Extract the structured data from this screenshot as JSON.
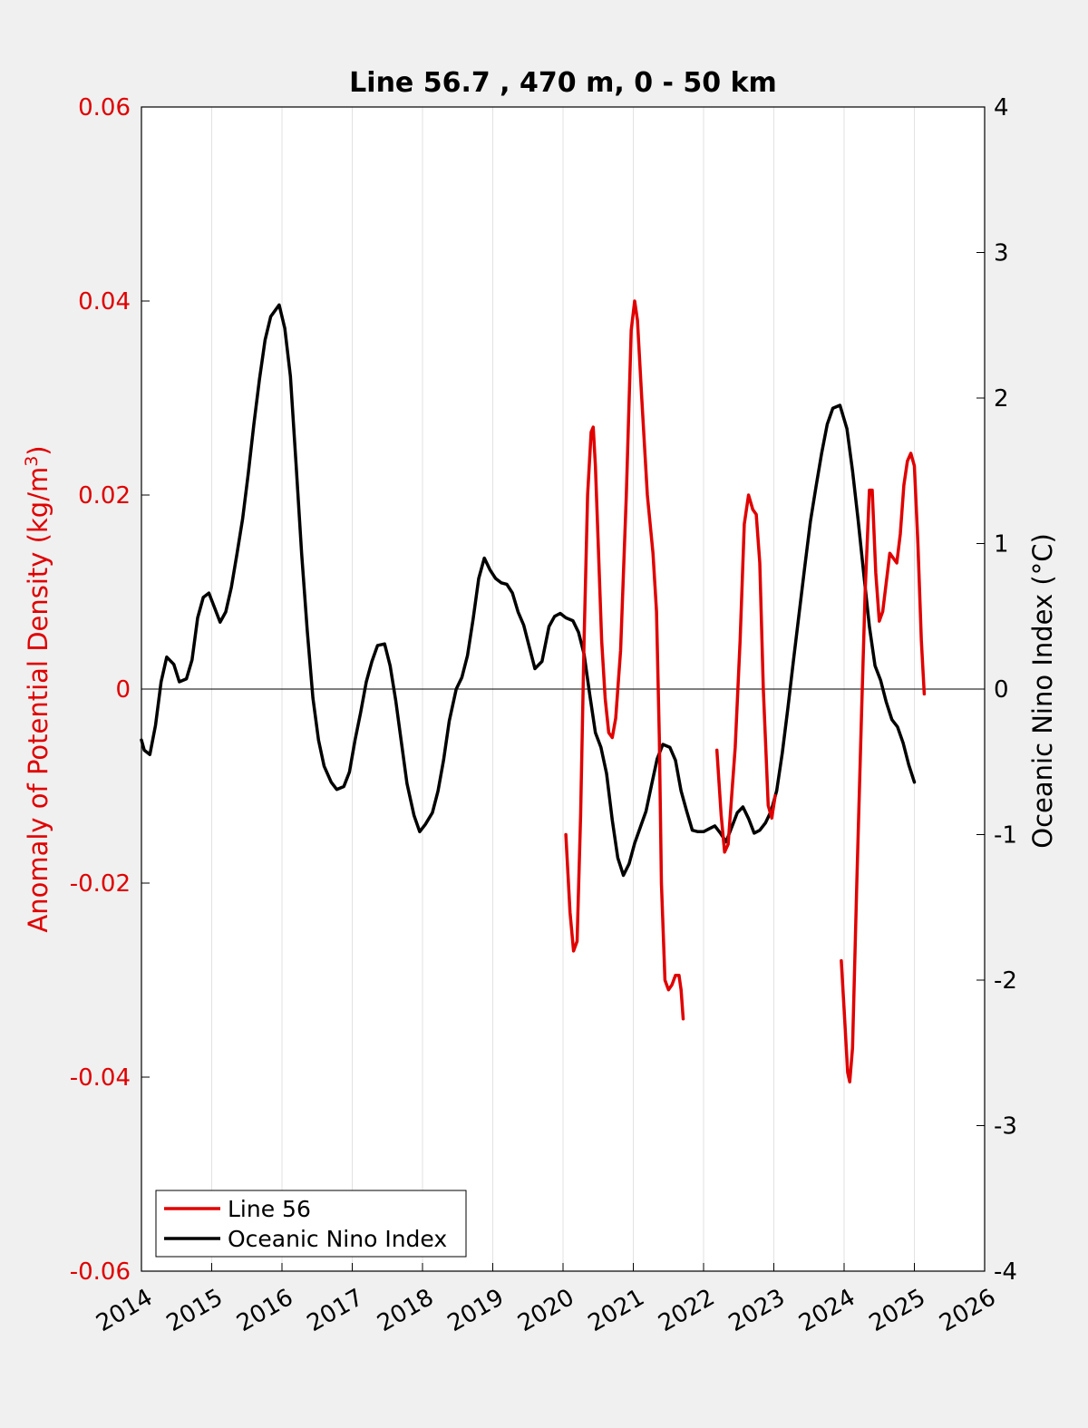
{
  "chart_data": {
    "type": "line",
    "title": "Line 56.7 , 470 m, 0 - 50 km",
    "ylabel_left": "Anomaly of Potential Density (kg/m3)",
    "ylabel_left_main": "Anomaly of Potential Density (kg/m",
    "ylabel_left_sup": "3",
    "ylabel_left_close": ")",
    "ylabel_right": "Oceanic Nino Index (°C)",
    "xlim": [
      2014,
      2026
    ],
    "ylim_left": [
      -0.06,
      0.06
    ],
    "ylim_right": [
      -4,
      4
    ],
    "grid": "vertical",
    "legend_position": "bottom-left",
    "x_ticks": [
      "2014",
      "2015",
      "2016",
      "2017",
      "2018",
      "2019",
      "2020",
      "2021",
      "2022",
      "2023",
      "2024",
      "2025",
      "2026"
    ],
    "y_left_ticks": [
      "0.06",
      "0.04",
      "0.02",
      "0",
      "-0.02",
      "-0.04",
      "-0.06"
    ],
    "y_right_ticks": [
      "4",
      "3",
      "2",
      "1",
      "0",
      "-1",
      "-2",
      "-3",
      "-4"
    ],
    "colors": {
      "line56": "#e00000",
      "oni": "#000000"
    },
    "series": [
      {
        "name": "Line 56",
        "axis": "left",
        "segments": [
          [
            [
              2020.04,
              -0.015
            ],
            [
              2020.1,
              -0.023
            ],
            [
              2020.15,
              -0.027
            ],
            [
              2020.2,
              -0.026
            ],
            [
              2020.25,
              -0.013
            ],
            [
              2020.3,
              0.005
            ],
            [
              2020.35,
              0.02
            ],
            [
              2020.4,
              0.0265
            ],
            [
              2020.43,
              0.027
            ],
            [
              2020.46,
              0.023
            ],
            [
              2020.5,
              0.015
            ],
            [
              2020.55,
              0.005
            ],
            [
              2020.6,
              -0.001
            ],
            [
              2020.65,
              -0.0045
            ],
            [
              2020.7,
              -0.005
            ],
            [
              2020.75,
              -0.003
            ],
            [
              2020.82,
              0.004
            ],
            [
              2020.9,
              0.02
            ],
            [
              2020.97,
              0.037
            ],
            [
              2021.02,
              0.04
            ],
            [
              2021.06,
              0.038
            ],
            [
              2021.12,
              0.03
            ],
            [
              2021.2,
              0.02
            ],
            [
              2021.28,
              0.014
            ],
            [
              2021.33,
              0.008
            ],
            [
              2021.37,
              -0.005
            ],
            [
              2021.4,
              -0.02
            ],
            [
              2021.45,
              -0.03
            ],
            [
              2021.5,
              -0.031
            ],
            [
              2021.55,
              -0.0305
            ],
            [
              2021.6,
              -0.0295
            ],
            [
              2021.65,
              -0.0295
            ],
            [
              2021.68,
              -0.031
            ],
            [
              2021.71,
              -0.034
            ]
          ],
          [
            [
              2022.19,
              -0.0063
            ],
            [
              2022.25,
              -0.013
            ],
            [
              2022.3,
              -0.0168
            ],
            [
              2022.35,
              -0.016
            ],
            [
              2022.45,
              -0.006
            ],
            [
              2022.52,
              0.005
            ],
            [
              2022.58,
              0.017
            ],
            [
              2022.64,
              0.02
            ],
            [
              2022.7,
              0.0185
            ],
            [
              2022.75,
              0.018
            ],
            [
              2022.8,
              0.013
            ],
            [
              2022.85,
              0.0
            ],
            [
              2022.92,
              -0.012
            ],
            [
              2022.97,
              -0.0133
            ],
            [
              2023.02,
              -0.011
            ]
          ],
          [
            [
              2023.96,
              -0.028
            ],
            [
              2024.0,
              -0.033
            ],
            [
              2024.05,
              -0.0395
            ],
            [
              2024.08,
              -0.0405
            ],
            [
              2024.12,
              -0.037
            ],
            [
              2024.18,
              -0.02
            ],
            [
              2024.25,
              -0.002
            ],
            [
              2024.3,
              0.01
            ],
            [
              2024.36,
              0.0205
            ],
            [
              2024.4,
              0.0205
            ],
            [
              2024.45,
              0.012
            ],
            [
              2024.5,
              0.007
            ],
            [
              2024.55,
              0.008
            ],
            [
              2024.6,
              0.011
            ],
            [
              2024.65,
              0.014
            ],
            [
              2024.7,
              0.0135
            ],
            [
              2024.75,
              0.013
            ],
            [
              2024.8,
              0.016
            ],
            [
              2024.85,
              0.021
            ],
            [
              2024.9,
              0.0235
            ],
            [
              2024.95,
              0.0243
            ],
            [
              2025.0,
              0.023
            ],
            [
              2025.05,
              0.015
            ],
            [
              2025.1,
              0.005
            ],
            [
              2025.14,
              -0.0005
            ]
          ]
        ]
      },
      {
        "name": "Oceanic Nino Index",
        "axis": "right",
        "segments": [
          [
            [
              2014.0,
              -0.35
            ],
            [
              2014.04,
              -0.42
            ],
            [
              2014.12,
              -0.45
            ],
            [
              2014.2,
              -0.25
            ],
            [
              2014.28,
              0.05
            ],
            [
              2014.36,
              0.22
            ],
            [
              2014.46,
              0.17
            ],
            [
              2014.54,
              0.05
            ],
            [
              2014.64,
              0.07
            ],
            [
              2014.72,
              0.2
            ],
            [
              2014.8,
              0.49
            ],
            [
              2014.88,
              0.63
            ],
            [
              2014.96,
              0.66
            ],
            [
              2015.04,
              0.56
            ],
            [
              2015.12,
              0.46
            ],
            [
              2015.2,
              0.53
            ],
            [
              2015.28,
              0.7
            ],
            [
              2015.36,
              0.93
            ],
            [
              2015.44,
              1.17
            ],
            [
              2015.52,
              1.48
            ],
            [
              2015.6,
              1.82
            ],
            [
              2015.68,
              2.13
            ],
            [
              2015.76,
              2.4
            ],
            [
              2015.84,
              2.56
            ],
            [
              2015.96,
              2.64
            ],
            [
              2016.04,
              2.48
            ],
            [
              2016.12,
              2.15
            ],
            [
              2016.2,
              1.55
            ],
            [
              2016.28,
              0.93
            ],
            [
              2016.36,
              0.4
            ],
            [
              2016.44,
              -0.06
            ],
            [
              2016.52,
              -0.35
            ],
            [
              2016.6,
              -0.53
            ],
            [
              2016.7,
              -0.64
            ],
            [
              2016.78,
              -0.69
            ],
            [
              2016.88,
              -0.67
            ],
            [
              2016.96,
              -0.57
            ],
            [
              2017.04,
              -0.35
            ],
            [
              2017.12,
              -0.16
            ],
            [
              2017.2,
              0.05
            ],
            [
              2017.28,
              0.19
            ],
            [
              2017.36,
              0.3
            ],
            [
              2017.46,
              0.31
            ],
            [
              2017.54,
              0.16
            ],
            [
              2017.62,
              -0.08
            ],
            [
              2017.7,
              -0.37
            ],
            [
              2017.78,
              -0.65
            ],
            [
              2017.88,
              -0.87
            ],
            [
              2017.96,
              -0.98
            ],
            [
              2018.04,
              -0.93
            ],
            [
              2018.14,
              -0.85
            ],
            [
              2018.22,
              -0.7
            ],
            [
              2018.3,
              -0.49
            ],
            [
              2018.38,
              -0.22
            ],
            [
              2018.48,
              0.0
            ],
            [
              2018.56,
              0.08
            ],
            [
              2018.64,
              0.23
            ],
            [
              2018.72,
              0.48
            ],
            [
              2018.8,
              0.76
            ],
            [
              2018.88,
              0.9
            ],
            [
              2018.96,
              0.82
            ],
            [
              2019.04,
              0.76
            ],
            [
              2019.12,
              0.73
            ],
            [
              2019.2,
              0.72
            ],
            [
              2019.28,
              0.66
            ],
            [
              2019.36,
              0.53
            ],
            [
              2019.44,
              0.44
            ],
            [
              2019.52,
              0.29
            ],
            [
              2019.6,
              0.14
            ],
            [
              2019.7,
              0.19
            ],
            [
              2019.8,
              0.43
            ],
            [
              2019.88,
              0.5
            ],
            [
              2019.96,
              0.52
            ],
            [
              2020.04,
              0.49
            ],
            [
              2020.14,
              0.47
            ],
            [
              2020.22,
              0.39
            ],
            [
              2020.3,
              0.24
            ],
            [
              2020.38,
              -0.04
            ],
            [
              2020.46,
              -0.3
            ],
            [
              2020.54,
              -0.4
            ],
            [
              2020.62,
              -0.58
            ],
            [
              2020.7,
              -0.9
            ],
            [
              2020.78,
              -1.16
            ],
            [
              2020.86,
              -1.28
            ],
            [
              2020.94,
              -1.2
            ],
            [
              2021.02,
              -1.06
            ],
            [
              2021.1,
              -0.95
            ],
            [
              2021.18,
              -0.84
            ],
            [
              2021.26,
              -0.66
            ],
            [
              2021.34,
              -0.48
            ],
            [
              2021.42,
              -0.38
            ],
            [
              2021.52,
              -0.4
            ],
            [
              2021.6,
              -0.49
            ],
            [
              2021.68,
              -0.7
            ],
            [
              2021.76,
              -0.84
            ],
            [
              2021.84,
              -0.97
            ],
            [
              2021.92,
              -0.98
            ],
            [
              2022.0,
              -0.98
            ],
            [
              2022.08,
              -0.96
            ],
            [
              2022.16,
              -0.94
            ],
            [
              2022.24,
              -0.99
            ],
            [
              2022.32,
              -1.05
            ],
            [
              2022.4,
              -0.95
            ],
            [
              2022.48,
              -0.85
            ],
            [
              2022.56,
              -0.81
            ],
            [
              2022.64,
              -0.89
            ],
            [
              2022.72,
              -0.99
            ],
            [
              2022.8,
              -0.97
            ],
            [
              2022.88,
              -0.92
            ],
            [
              2022.96,
              -0.84
            ],
            [
              2023.04,
              -0.7
            ],
            [
              2023.12,
              -0.44
            ],
            [
              2023.2,
              -0.13
            ],
            [
              2023.28,
              0.2
            ],
            [
              2023.36,
              0.52
            ],
            [
              2023.44,
              0.84
            ],
            [
              2023.52,
              1.15
            ],
            [
              2023.6,
              1.39
            ],
            [
              2023.68,
              1.62
            ],
            [
              2023.76,
              1.82
            ],
            [
              2023.84,
              1.93
            ],
            [
              2023.94,
              1.95
            ],
            [
              2024.04,
              1.79
            ],
            [
              2024.12,
              1.5
            ],
            [
              2024.2,
              1.16
            ],
            [
              2024.28,
              0.79
            ],
            [
              2024.36,
              0.43
            ],
            [
              2024.44,
              0.16
            ],
            [
              2024.52,
              0.06
            ],
            [
              2024.6,
              -0.09
            ],
            [
              2024.68,
              -0.21
            ],
            [
              2024.76,
              -0.26
            ],
            [
              2024.84,
              -0.37
            ],
            [
              2024.92,
              -0.52
            ],
            [
              2025.0,
              -0.64
            ]
          ]
        ]
      }
    ]
  }
}
